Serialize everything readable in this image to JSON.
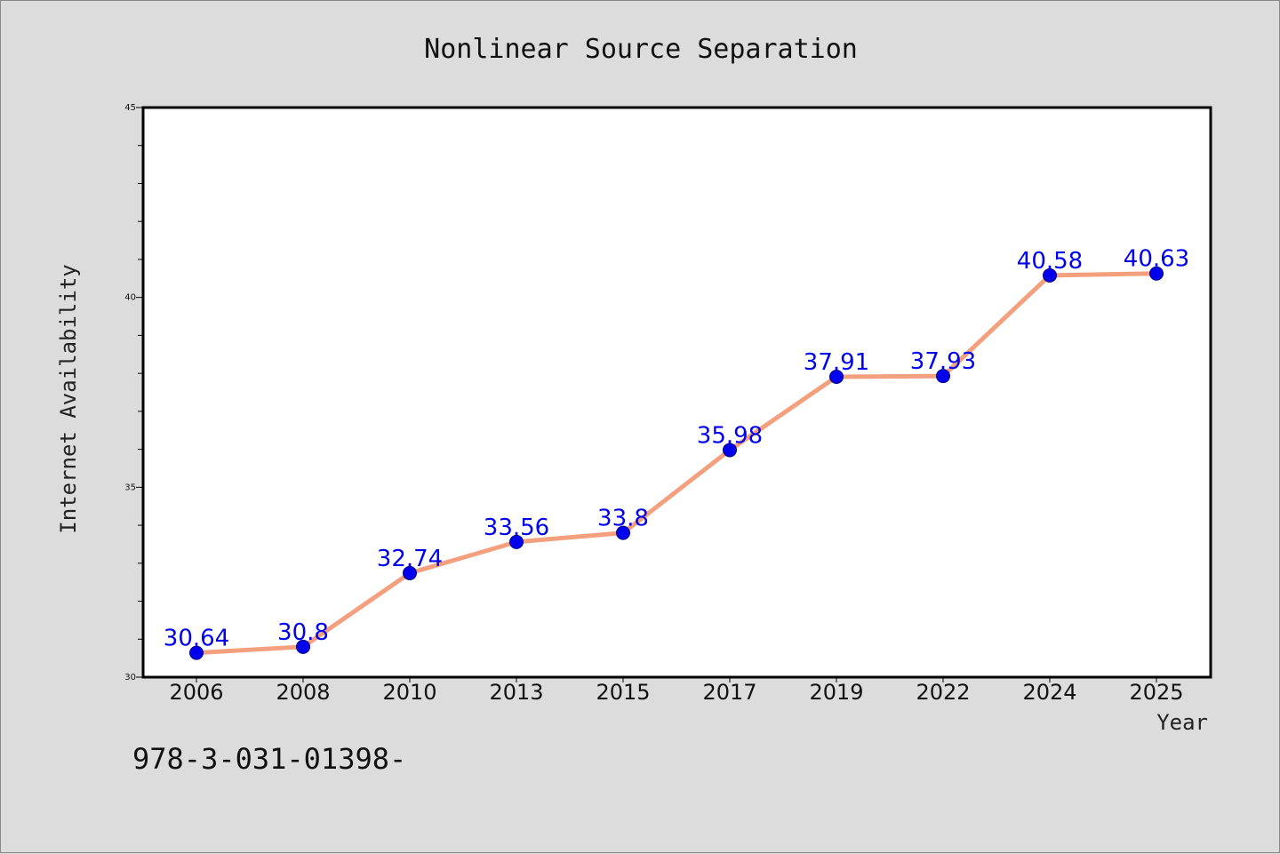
{
  "chart_data": {
    "type": "line",
    "title": "Nonlinear Source Separation",
    "xlabel": "Year",
    "ylabel": "Internet Availability",
    "categories": [
      "2006",
      "2008",
      "2010",
      "2013",
      "2015",
      "2017",
      "2019",
      "2022",
      "2024",
      "2025"
    ],
    "series": [
      {
        "values": [
          30.64,
          30.8,
          32.74,
          33.56,
          33.8,
          35.98,
          37.91,
          37.93,
          40.58,
          40.63
        ],
        "line_color": "#f4a07e",
        "marker_color": "#0000ee",
        "label_color": "#0000ee"
      }
    ],
    "ylim": [
      30,
      45
    ],
    "yticks": [
      30,
      35,
      40,
      45
    ],
    "grid": false,
    "legend": "none"
  },
  "footnote": "978-3-031-01398-",
  "colors": {
    "background": "#dcdcdc",
    "plot_background": "#ffffff",
    "line": "#f4a07e",
    "markers": "#0000ee"
  }
}
